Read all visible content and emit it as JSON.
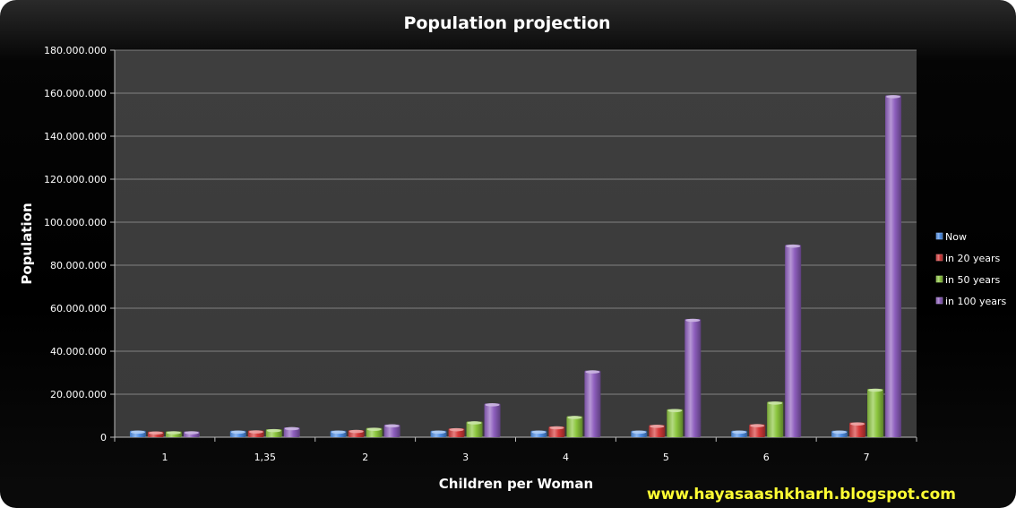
{
  "chart_data": {
    "type": "bar",
    "title": "Population projection",
    "xlabel": "Children per Woman",
    "ylabel": "Population",
    "categories": [
      "1",
      "1,35",
      "2",
      "3",
      "4",
      "5",
      "6",
      "7"
    ],
    "ylim": [
      0,
      180000000
    ],
    "yticks": [
      0,
      20000000,
      40000000,
      60000000,
      80000000,
      100000000,
      120000000,
      140000000,
      160000000,
      180000000
    ],
    "ytick_labels": [
      "0",
      "20.000.000",
      "40.000.000",
      "60.000.000",
      "80.000.000",
      "100.000.000",
      "120.000.000",
      "140.000.000",
      "160.000.000",
      "180.000.000"
    ],
    "grid": true,
    "legend_position": "right",
    "series": [
      {
        "name": "Now",
        "color": "#4f8fe6",
        "values": [
          3000000,
          3000000,
          3000000,
          3000000,
          3000000,
          3000000,
          3000000,
          3000000
        ]
      },
      {
        "name": "in 20 years",
        "color": "#d63a3a",
        "values": [
          2600000,
          3100000,
          3300000,
          4100000,
          5000000,
          5700000,
          6000000,
          6800000
        ]
      },
      {
        "name": "in 50 years",
        "color": "#8cc63e",
        "values": [
          2700000,
          3700000,
          4300000,
          7300000,
          9800000,
          13000000,
          16500000,
          22500000
        ]
      },
      {
        "name": "in 100 years",
        "color": "#8e5fbe",
        "values": [
          2700000,
          4600000,
          5900000,
          15700000,
          31000000,
          55000000,
          89500000,
          159000000
        ]
      }
    ]
  },
  "watermark": "www.hayasaashkharh.blogspot.com"
}
